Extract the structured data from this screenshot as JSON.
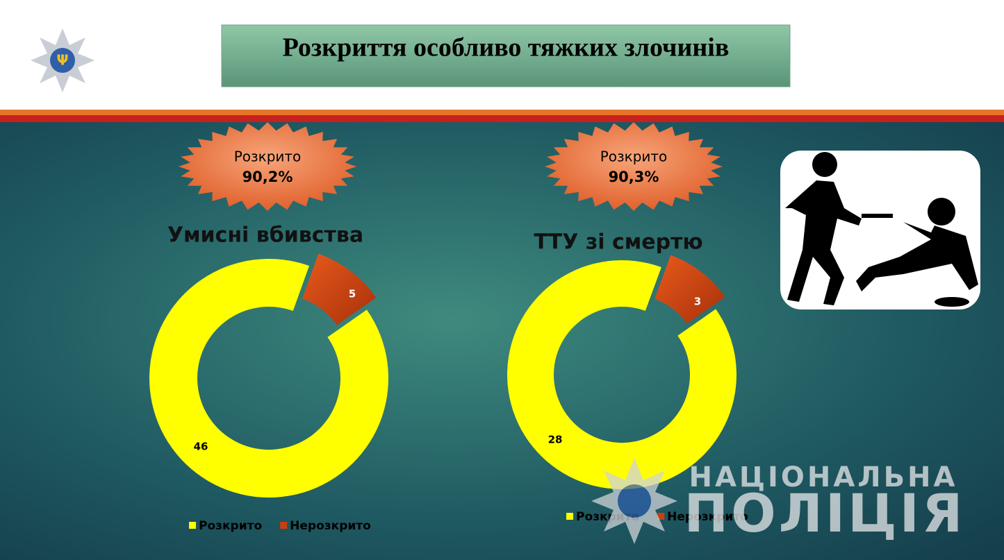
{
  "title": "Розкриття особливо тяжких злочинів",
  "chart_data": [
    {
      "type": "donut",
      "title": "Умисні вбивства",
      "badge": {
        "text": "Розкрито",
        "value": "90,2%"
      },
      "categories": [
        "Розкрито",
        "Нерозкрито"
      ],
      "values": [
        46,
        5
      ],
      "colors": [
        "#ffff00",
        "#c8400e"
      ]
    },
    {
      "type": "donut",
      "title": "ТТУ зі смертю",
      "badge": {
        "text": "Розкрито",
        "value": "90,3%"
      },
      "categories": [
        "Розкрито",
        "Нерозкрито"
      ],
      "values": [
        28,
        3
      ],
      "colors": [
        "#ffff00",
        "#c8400e"
      ]
    }
  ],
  "watermark": {
    "line1": "НАЦІОНАЛЬНА",
    "line2": "ПОЛІЦІЯ"
  }
}
